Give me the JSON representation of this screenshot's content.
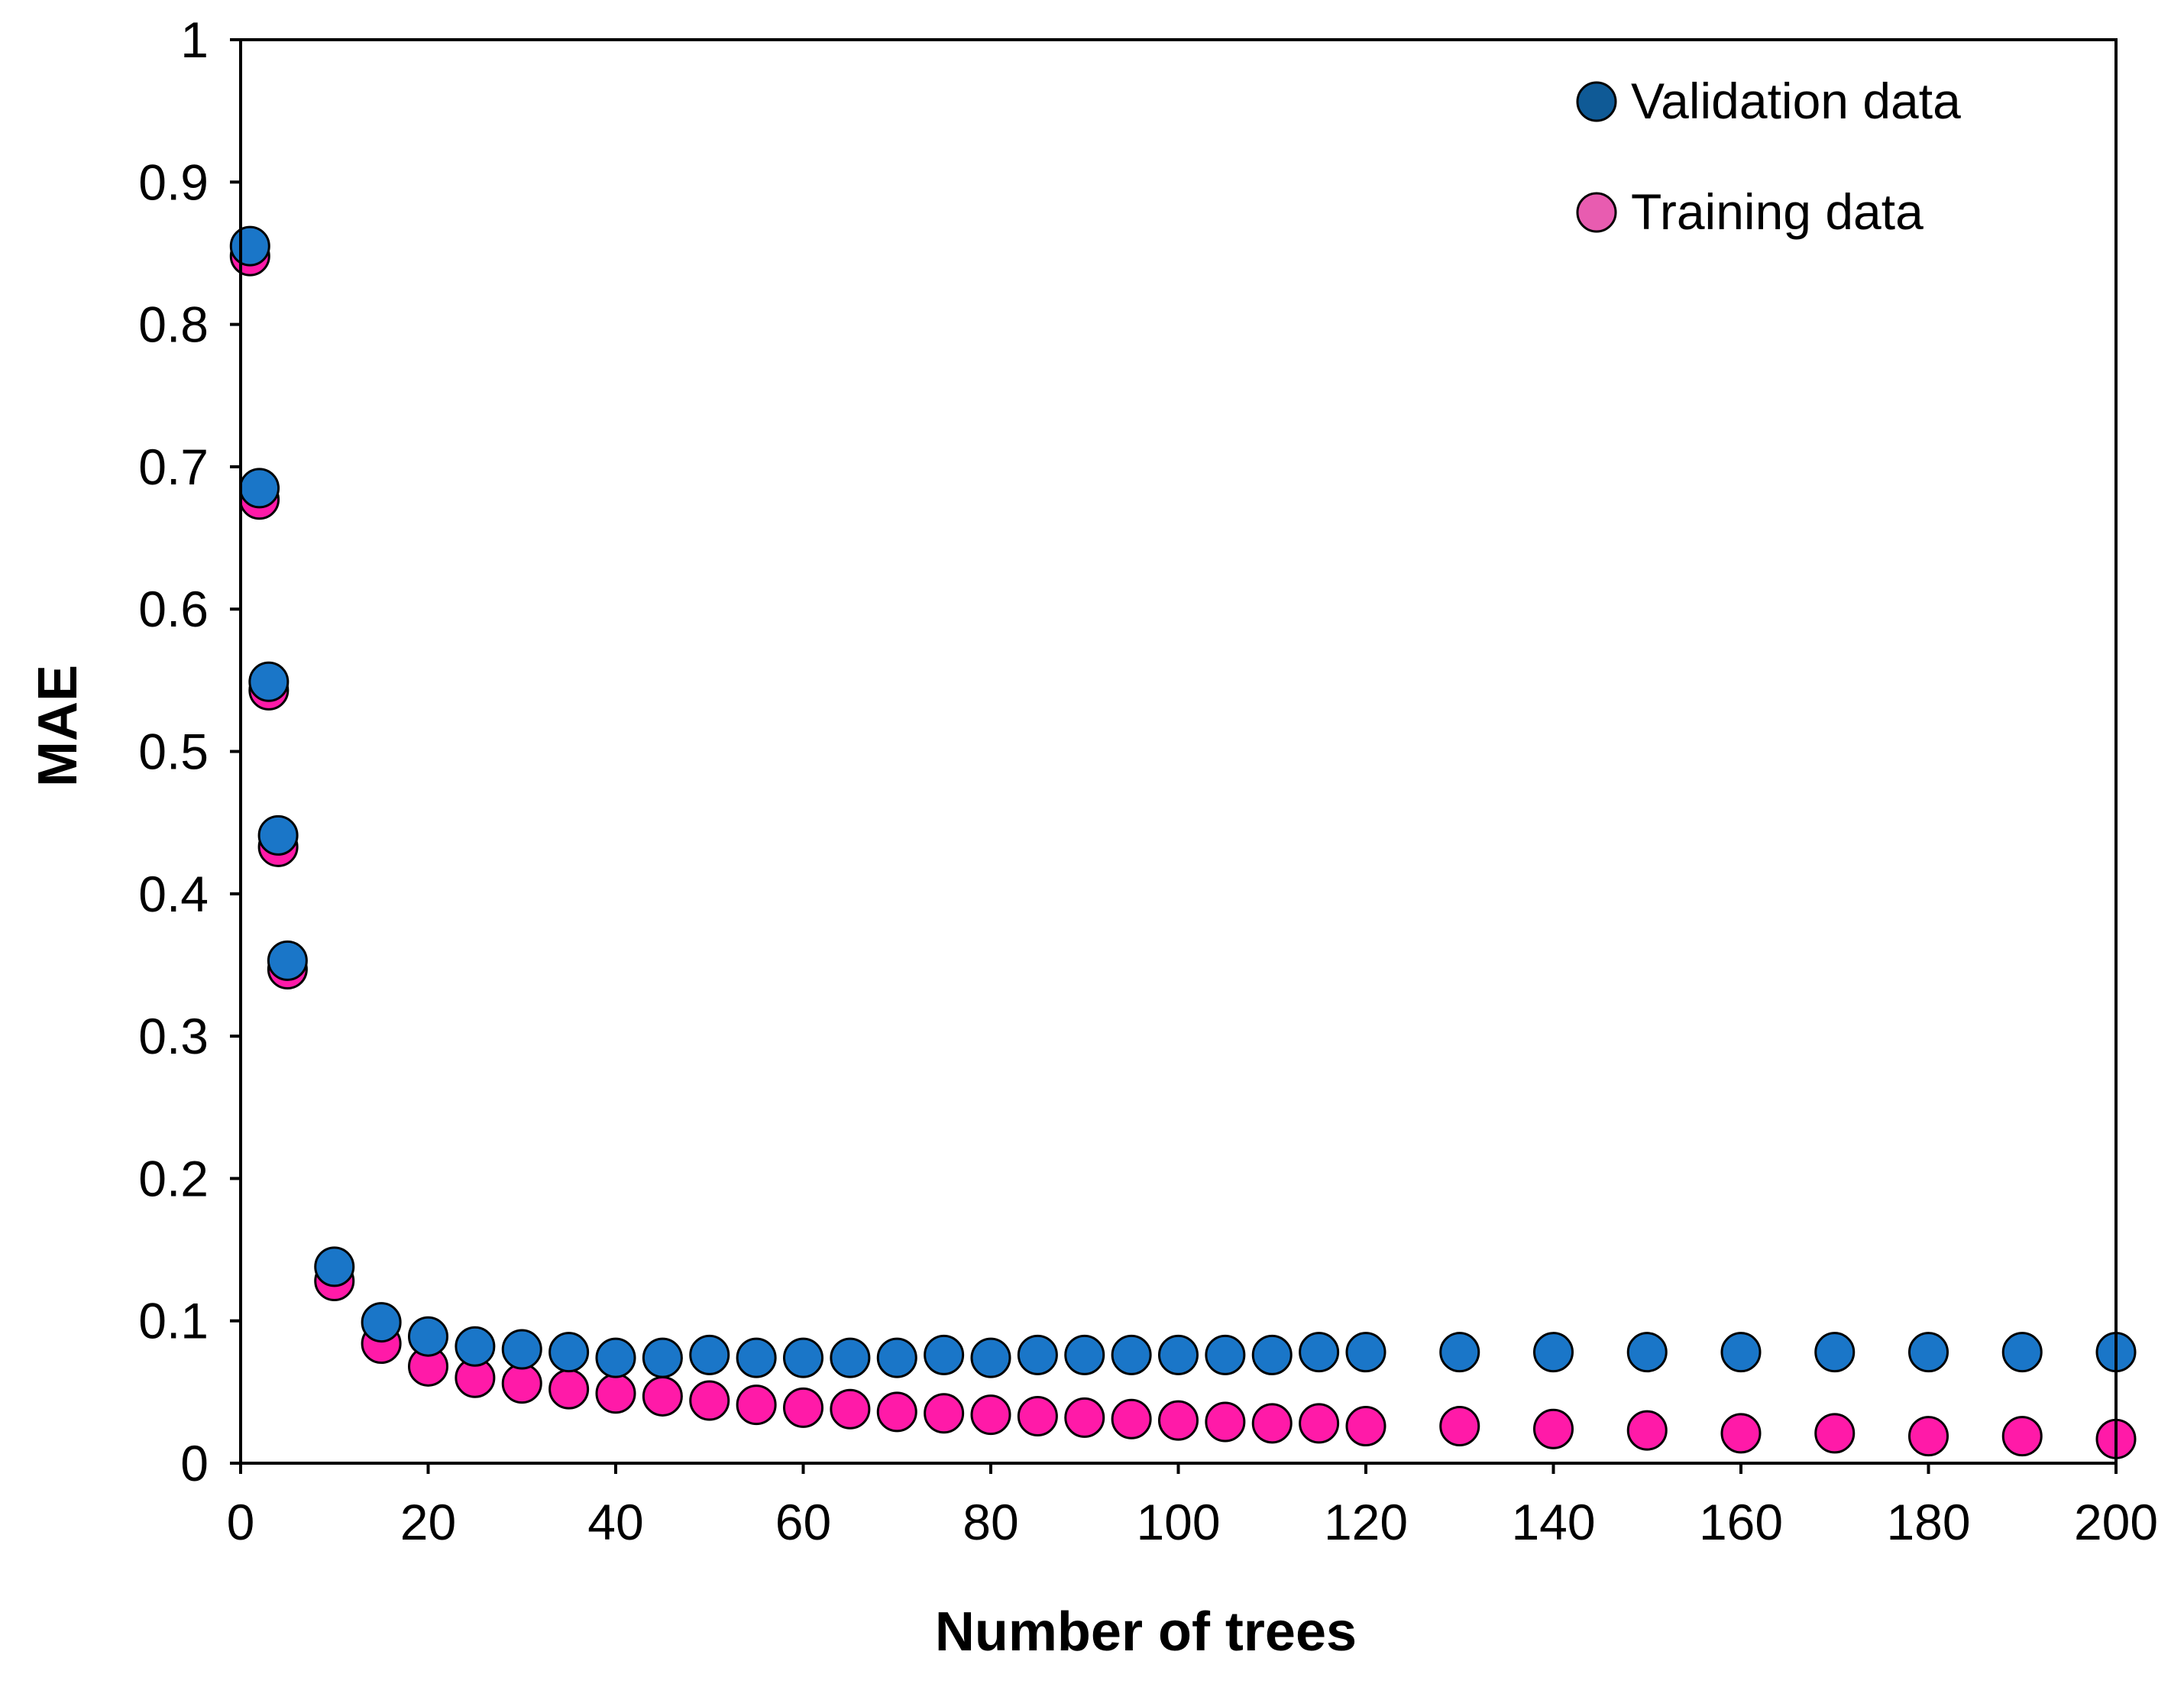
{
  "chart_data": {
    "type": "scatter",
    "title": "",
    "xlabel": "Number of trees",
    "ylabel": "MAE",
    "xlim": [
      0,
      200
    ],
    "ylim": [
      0,
      1
    ],
    "xticks": [
      0,
      20,
      40,
      60,
      80,
      100,
      120,
      140,
      160,
      180,
      200
    ],
    "xtick_labels": [
      "0",
      "20",
      "40",
      "60",
      "80",
      "100",
      "120",
      "140",
      "160",
      "180",
      "200"
    ],
    "yticks": [
      0,
      0.1,
      0.2,
      0.3,
      0.4,
      0.5,
      0.6,
      0.7,
      0.8,
      0.9,
      1
    ],
    "ytick_labels": [
      "0",
      "0.1",
      "0.2",
      "0.3",
      "0.4",
      "0.5",
      "0.6",
      "0.7",
      "0.8",
      "0.9",
      "1"
    ],
    "grid": false,
    "legend_position": "top-right",
    "series": [
      {
        "name": "Training data",
        "color": "#ff1aa8",
        "legend_color": "#e85cb0",
        "x": [
          1,
          2,
          3,
          4,
          5,
          10,
          15,
          20,
          25,
          30,
          35,
          40,
          45,
          50,
          55,
          60,
          65,
          70,
          75,
          80,
          85,
          90,
          95,
          100,
          105,
          110,
          115,
          120,
          130,
          140,
          150,
          160,
          170,
          180,
          190,
          200
        ],
        "y": [
          0.848,
          0.677,
          0.543,
          0.433,
          0.347,
          0.128,
          0.084,
          0.068,
          0.06,
          0.056,
          0.052,
          0.049,
          0.047,
          0.044,
          0.041,
          0.039,
          0.038,
          0.036,
          0.035,
          0.034,
          0.033,
          0.032,
          0.031,
          0.03,
          0.029,
          0.028,
          0.028,
          0.026,
          0.026,
          0.024,
          0.023,
          0.021,
          0.021,
          0.019,
          0.019,
          0.017
        ]
      },
      {
        "name": "Validation data",
        "color": "#1a76c8",
        "legend_color": "#0f5a96",
        "x": [
          1,
          2,
          3,
          4,
          5,
          10,
          15,
          20,
          25,
          30,
          35,
          40,
          45,
          50,
          55,
          60,
          65,
          70,
          75,
          80,
          85,
          90,
          95,
          100,
          105,
          110,
          115,
          120,
          130,
          140,
          150,
          160,
          170,
          180,
          190,
          200
        ],
        "y": [
          0.855,
          0.685,
          0.549,
          0.441,
          0.353,
          0.138,
          0.099,
          0.089,
          0.082,
          0.08,
          0.078,
          0.074,
          0.074,
          0.076,
          0.074,
          0.074,
          0.074,
          0.074,
          0.076,
          0.074,
          0.076,
          0.076,
          0.076,
          0.076,
          0.076,
          0.076,
          0.078,
          0.078,
          0.078,
          0.078,
          0.078,
          0.078,
          0.078,
          0.078,
          0.078,
          0.078
        ]
      }
    ],
    "legend_order": [
      "Validation data",
      "Training data"
    ]
  }
}
